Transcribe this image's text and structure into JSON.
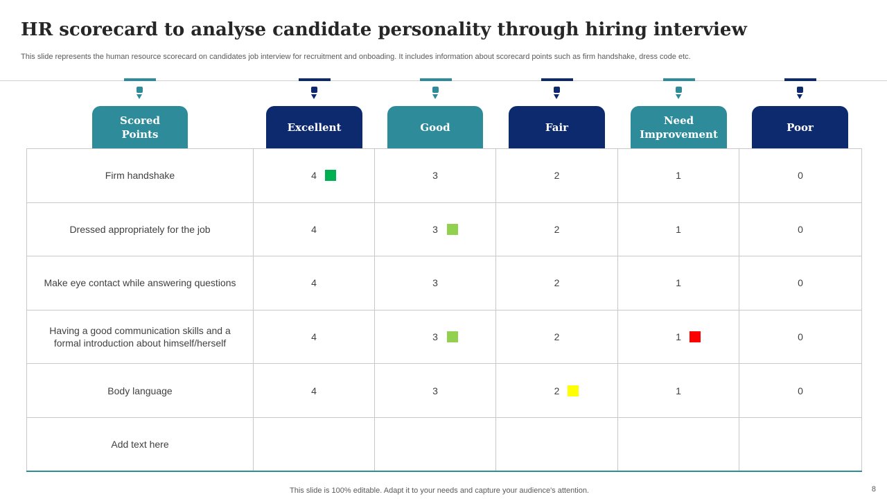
{
  "title": "HR scorecard to analyse candidate personality through hiring interview",
  "subtitle": "This slide represents the human resource scorecard on candidates job interview for recruitment and onboading. It includes information about scorecard points such as firm handshake, dress code etc.",
  "headers": [
    {
      "line1": "Scored",
      "line2": "Points"
    },
    {
      "line1": "Excellent",
      "line2": ""
    },
    {
      "line1": "Good",
      "line2": ""
    },
    {
      "line1": "Fair",
      "line2": ""
    },
    {
      "line1": "Need",
      "line2": "Improvement"
    },
    {
      "line1": "Poor",
      "line2": ""
    }
  ],
  "rows": [
    {
      "label": "Firm handshake",
      "values": [
        "4",
        "3",
        "2",
        "1",
        "0"
      ],
      "marked_column": "Excellent",
      "marker_color": "#00b050"
    },
    {
      "label": "Dressed appropriately for the job",
      "values": [
        "4",
        "3",
        "2",
        "1",
        "0"
      ],
      "marked_column": "Good",
      "marker_color": "#92d050"
    },
    {
      "label": "Make eye contact while answering questions",
      "values": [
        "4",
        "3",
        "2",
        "1",
        "0"
      ],
      "marked_column": "",
      "marker_color": ""
    },
    {
      "label": "Having a good communication skills and a formal introduction about himself/herself",
      "values": [
        "4",
        "3",
        "2",
        "1",
        "0"
      ],
      "marked_column": "Good / Need Improvement",
      "marker_color": "#92d050 / #ff0000"
    },
    {
      "label": "Body language",
      "values": [
        "4",
        "3",
        "2",
        "1",
        "0"
      ],
      "marked_column": "Fair",
      "marker_color": "#ffff00"
    },
    {
      "label": "Add text here",
      "values": [
        "",
        "",
        "",
        "",
        ""
      ],
      "marked_column": "",
      "marker_color": ""
    }
  ],
  "colors": {
    "teal": "#2e8b9a",
    "navy": "#0e2a6e"
  },
  "footer": "This slide is 100% editable. Adapt it to your needs and capture your audience's attention.",
  "page_number": "8"
}
